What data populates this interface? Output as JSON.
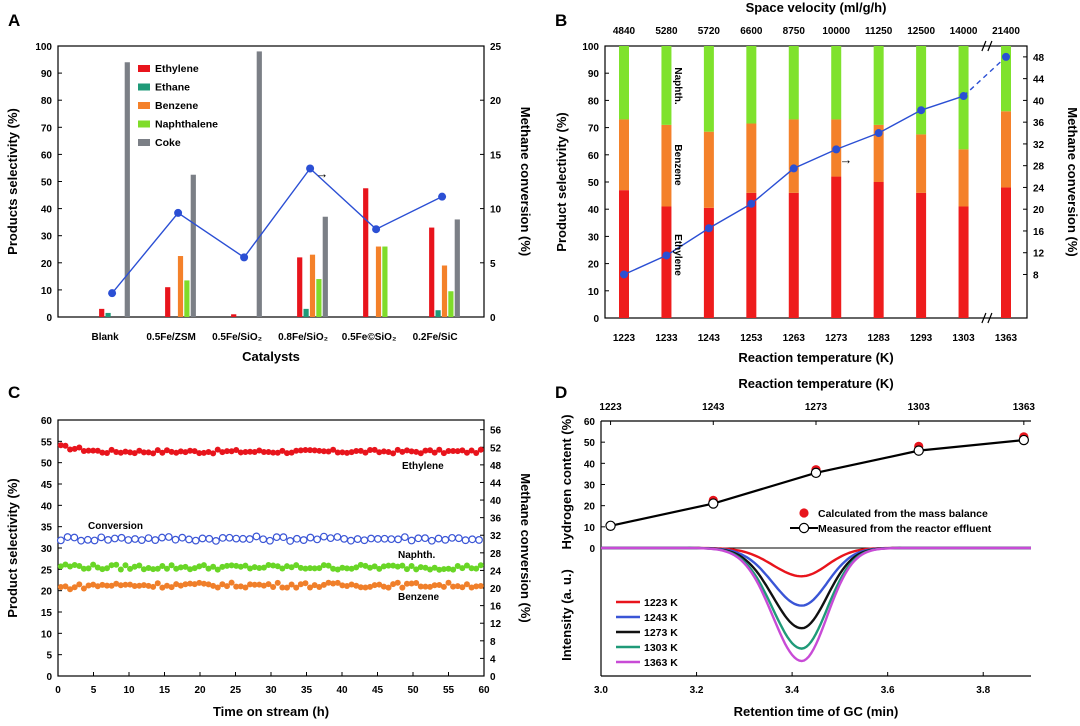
{
  "chart_data": [
    {
      "panel": "A",
      "type": "bar",
      "xlabel": "Catalysts",
      "ylabel": "Products selectivity (%)",
      "y2label": "Methane conversion (%)",
      "ylim": [
        0,
        100
      ],
      "y2lim": [
        0,
        25
      ],
      "yticks": [
        0,
        10,
        20,
        30,
        40,
        50,
        60,
        70,
        80,
        90,
        100
      ],
      "y2ticks": [
        0,
        5,
        10,
        15,
        20,
        25
      ],
      "categories": [
        "Blank",
        "0.5Fe/ZSM",
        "0.5Fe/SiO₂",
        "0.8Fe/SiO₂",
        "0.5Fe©SiO₂",
        "0.2Fe/SiC"
      ],
      "series": [
        {
          "name": "Ethylene",
          "color": "#e8141c",
          "values": [
            3,
            11,
            1,
            22,
            47.5,
            33
          ]
        },
        {
          "name": "Ethane",
          "color": "#1f9a78",
          "values": [
            1.5,
            0,
            0,
            3,
            0,
            2.5
          ]
        },
        {
          "name": "Benzene",
          "color": "#f4812a",
          "values": [
            0,
            22.5,
            0,
            23,
            26,
            19
          ]
        },
        {
          "name": "Naphthalene",
          "color": "#7fdc2a",
          "values": [
            0,
            13.5,
            0,
            14,
            26,
            9.5
          ]
        },
        {
          "name": "Coke",
          "color": "#7b7f86",
          "values": [
            94,
            52.5,
            98,
            37,
            0,
            36
          ]
        }
      ],
      "line": {
        "name": "Methane conversion",
        "color": "#2b4fd4",
        "values": [
          2.2,
          9.6,
          5.5,
          13.7,
          8.1,
          11.1
        ]
      }
    },
    {
      "panel": "B",
      "type": "bar",
      "stacked": true,
      "xlabel": "Reaction temperature (K)",
      "x2label": "Space velocity (ml/g/h)",
      "ylabel": "Product selectivity (%)",
      "y2label": "Methane conversion (%)",
      "ylim": [
        0,
        100
      ],
      "y2lim": [
        0,
        50
      ],
      "yticks": [
        0,
        10,
        20,
        30,
        40,
        50,
        60,
        70,
        80,
        90,
        100
      ],
      "y2ticks": [
        8,
        12,
        16,
        20,
        24,
        28,
        32,
        36,
        40,
        44,
        48
      ],
      "categories": [
        "1223",
        "1233",
        "1243",
        "1253",
        "1263",
        "1273",
        "1283",
        "1293",
        "1303",
        "1363"
      ],
      "top_categories": [
        "4840",
        "5280",
        "5720",
        "6600",
        "8750",
        "10000",
        "11250",
        "12500",
        "14000",
        "21400"
      ],
      "series": [
        {
          "name": "Ethylene",
          "color": "#ee1c1c",
          "values": [
            47,
            41,
            40.5,
            46,
            46,
            52,
            50,
            46,
            41,
            48
          ]
        },
        {
          "name": "Benzene",
          "color": "#f4812a",
          "values": [
            26,
            30,
            28,
            25.5,
            27,
            21,
            21,
            21.5,
            21,
            28
          ]
        },
        {
          "name": "Naphth.",
          "color": "#7fe22d",
          "values": [
            27,
            29,
            31.5,
            28.5,
            27,
            27,
            29,
            32.5,
            38,
            24
          ]
        }
      ],
      "line": {
        "name": "Methane conversion",
        "color": "#2b4fd4",
        "values": [
          8,
          11.5,
          16.5,
          21,
          27.5,
          31,
          34,
          38.2,
          40.8,
          48
        ]
      },
      "inline_labels": [
        "Naphth.",
        "Benzene",
        "Ethylene"
      ]
    },
    {
      "panel": "C",
      "type": "scatter",
      "xlabel": "Time on stream (h)",
      "ylabel": "Product selectivity (%)",
      "y2label": "Methane conversion (%)",
      "xlim": [
        0,
        60
      ],
      "ylim": [
        0,
        60
      ],
      "y2lim": [
        0,
        58.2
      ],
      "xticks": [
        0,
        5,
        10,
        15,
        20,
        25,
        30,
        35,
        40,
        45,
        50,
        55,
        60
      ],
      "yticks": [
        0,
        5,
        10,
        15,
        20,
        25,
        30,
        35,
        40,
        45,
        50,
        55,
        60
      ],
      "y2ticks": [
        0,
        4,
        8,
        12,
        16,
        20,
        24,
        28,
        32,
        36,
        40,
        44,
        48,
        52,
        56
      ],
      "series": [
        {
          "name": "Ethylene",
          "color": "#e8141c",
          "marker": "filled",
          "sample_interval_h": 0.65,
          "level": 52.6,
          "noise": 0.45,
          "start_bump": 1.2
        },
        {
          "name": "Conversion",
          "color": "#3a55d6",
          "marker": "open",
          "sample_interval_h": 0.95,
          "level": 32.2,
          "noise": 0.55,
          "start_bump": 0
        },
        {
          "name": "Naphth.",
          "color": "#69d626",
          "marker": "filled",
          "sample_interval_h": 0.65,
          "level": 25.5,
          "noise": 0.6,
          "start_bump": 0.4
        },
        {
          "name": "Benzene",
          "color": "#f07f2a",
          "marker": "filled",
          "sample_interval_h": 0.65,
          "level": 21.3,
          "noise": 0.6,
          "start_bump": -0.6
        }
      ]
    },
    {
      "panel": "D",
      "type": "line",
      "x2label": "Reaction temperature (K)",
      "x2ticks": [
        "1223",
        "1243",
        "1273",
        "1303",
        "1363"
      ],
      "ylabel_top": "Hydrogen content (%)",
      "ylabel_bottom": "Intensity (a. u.)",
      "xlabel": "Retention time of GC (min)",
      "xlim": [
        3.0,
        3.9
      ],
      "xticks": [
        3.0,
        3.2,
        3.4,
        3.6,
        3.8
      ],
      "ylim": [
        0,
        60
      ],
      "yticks": [
        0,
        10,
        20,
        30,
        40,
        50,
        60
      ],
      "hydrogen_x": [
        3.02,
        3.235,
        3.45,
        3.665,
        3.885
      ],
      "calculated": {
        "label": "Calculated from the mass balance",
        "color": "#e8141c",
        "values": [
          10.5,
          22.5,
          37,
          48,
          52.5
        ]
      },
      "measured": {
        "label": "Measured from the reactor effluent",
        "values": [
          10.5,
          21,
          35.5,
          46,
          51
        ]
      },
      "peaks": [
        {
          "label": "1223 K",
          "color": "#e8141c",
          "depth": 0.25
        },
        {
          "label": "1243 K",
          "color": "#3a55d6",
          "depth": 0.51
        },
        {
          "label": "1273 K",
          "color": "#111111",
          "depth": 0.71
        },
        {
          "label": "1303 K",
          "color": "#1f9a78",
          "depth": 0.89
        },
        {
          "label": "1363 K",
          "color": "#c84bd6",
          "depth": 1.0
        }
      ],
      "peak_center": 3.42
    }
  ],
  "annotations": {
    "A": {
      "arrow": "→"
    },
    "B": {
      "arrow": "→"
    },
    "C": {
      "conversion": "Conversion",
      "ethylene": "Ethylene",
      "naphth": "Naphth.",
      "benzene": "Benzene"
    }
  },
  "panel_letters": [
    "A",
    "B",
    "C",
    "D"
  ]
}
